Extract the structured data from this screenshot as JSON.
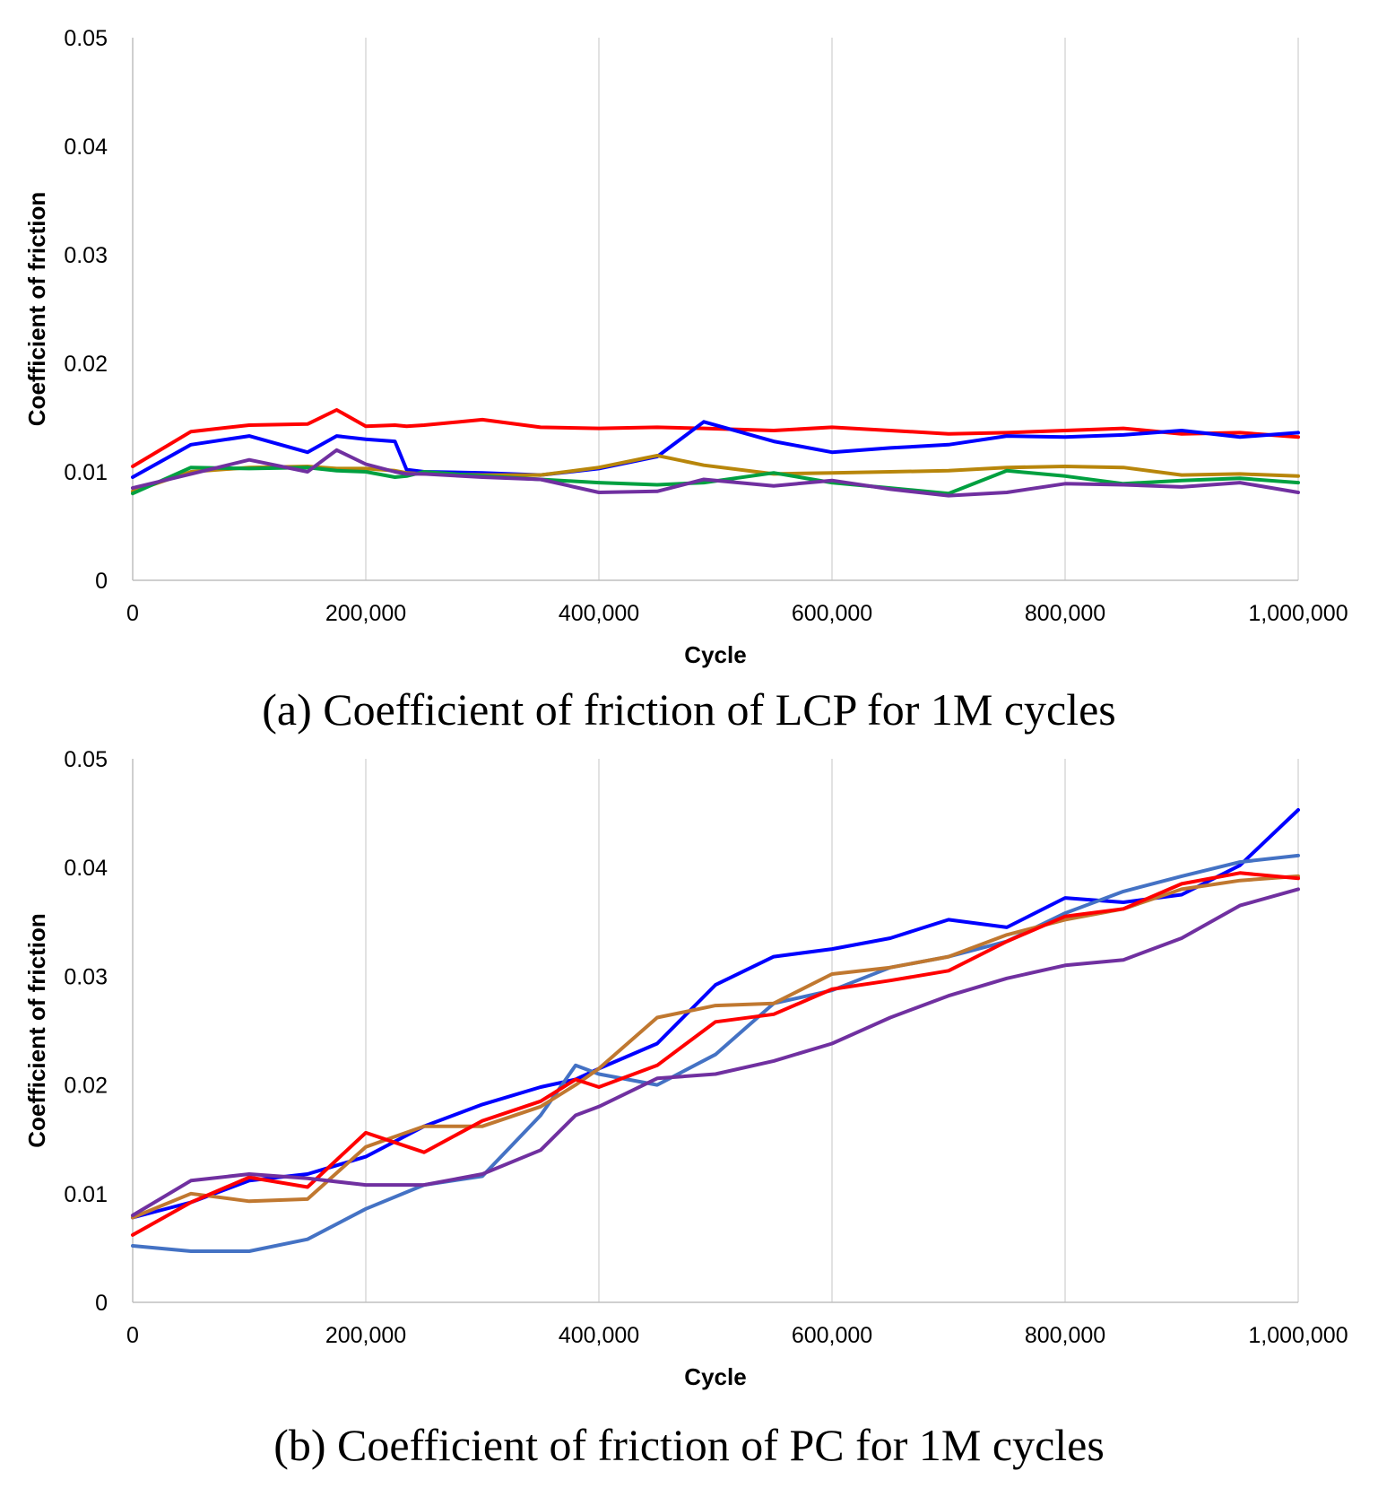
{
  "chart_data": [
    {
      "type": "line",
      "caption": "(a) Coefficient of friction of LCP for 1M cycles",
      "xlabel": "Cycle",
      "ylabel": "Coefficient of friction",
      "xlim": [
        0,
        1000000
      ],
      "ylim": [
        0,
        0.05
      ],
      "x_ticks": [
        "0",
        "200,000",
        "400,000",
        "600,000",
        "800,000",
        "1,000,000"
      ],
      "y_ticks": [
        "0",
        "0.01",
        "0.02",
        "0.03",
        "0.04",
        "0.05"
      ],
      "grid": "vertical",
      "legend": "none",
      "x": [
        0,
        50000,
        100000,
        150000,
        175000,
        200000,
        225000,
        235000,
        250000,
        300000,
        350000,
        400000,
        450000,
        490000,
        550000,
        600000,
        650000,
        700000,
        750000,
        800000,
        850000,
        900000,
        950000,
        1000000
      ],
      "series": [
        {
          "color": "#ff0000",
          "values": [
            0.0105,
            0.0137,
            0.0143,
            0.0144,
            0.0157,
            0.0142,
            0.0143,
            0.0142,
            0.0143,
            0.0148,
            0.0141,
            0.014,
            0.0141,
            0.014,
            0.0138,
            0.0141,
            0.0138,
            0.0135,
            0.0136,
            0.0138,
            0.014,
            0.0135,
            0.0136,
            0.0132
          ]
        },
        {
          "color": "#0000ff",
          "values": [
            0.0095,
            0.0125,
            0.0133,
            0.0118,
            0.0133,
            0.013,
            0.0128,
            0.0102,
            0.01,
            0.0099,
            0.0097,
            0.0103,
            0.0114,
            0.0146,
            0.0128,
            0.0118,
            0.0122,
            0.0125,
            0.0133,
            0.0132,
            0.0134,
            0.0138,
            0.0132,
            0.0136
          ]
        },
        {
          "color": "#b8860b",
          "values": [
            0.0082,
            0.01,
            0.0104,
            0.0105,
            0.0103,
            0.0103,
            0.0101,
            0.0099,
            0.0098,
            0.0097,
            0.0097,
            0.0104,
            0.0115,
            0.0106,
            0.0098,
            0.0099,
            0.01,
            0.0101,
            0.0104,
            0.0105,
            0.0104,
            0.0097,
            0.0098,
            0.0096
          ]
        },
        {
          "color": "#00a040",
          "values": [
            0.008,
            0.0104,
            0.0103,
            0.0104,
            0.0101,
            0.01,
            0.0095,
            0.0096,
            0.01,
            0.0096,
            0.0093,
            0.009,
            0.0088,
            0.009,
            0.0099,
            0.009,
            0.0085,
            0.008,
            0.0101,
            0.0096,
            0.0089,
            0.0092,
            0.0094,
            0.009
          ]
        },
        {
          "color": "#7030a0",
          "values": [
            0.0085,
            0.0098,
            0.0111,
            0.01,
            0.012,
            0.0107,
            0.01,
            0.0098,
            0.0098,
            0.0095,
            0.0093,
            0.0081,
            0.0082,
            0.0093,
            0.0087,
            0.0092,
            0.0084,
            0.0078,
            0.0081,
            0.0089,
            0.0088,
            0.0086,
            0.009,
            0.0081
          ]
        }
      ]
    },
    {
      "type": "line",
      "caption": "(b) Coefficient of friction of PC for 1M cycles",
      "xlabel": "Cycle",
      "ylabel": "Coefficient of friction",
      "xlim": [
        0,
        1000000
      ],
      "ylim": [
        0,
        0.05
      ],
      "x_ticks": [
        "0",
        "200,000",
        "400,000",
        "600,000",
        "800,000",
        "1,000,000"
      ],
      "y_ticks": [
        "0",
        "0.01",
        "0.02",
        "0.03",
        "0.04",
        "0.05"
      ],
      "grid": "vertical",
      "legend": "none",
      "x": [
        0,
        50000,
        100000,
        150000,
        200000,
        250000,
        300000,
        350000,
        380000,
        400000,
        450000,
        500000,
        550000,
        600000,
        650000,
        700000,
        750000,
        800000,
        850000,
        900000,
        950000,
        1000000
      ],
      "series": [
        {
          "color": "#0000ff",
          "values": [
            0.0078,
            0.0092,
            0.0112,
            0.0118,
            0.0134,
            0.0162,
            0.0182,
            0.0198,
            0.0205,
            0.0215,
            0.0238,
            0.0292,
            0.0318,
            0.0325,
            0.0335,
            0.0352,
            0.0345,
            0.0372,
            0.0368,
            0.0375,
            0.0402,
            0.0453
          ]
        },
        {
          "color": "#4472c4",
          "values": [
            0.0052,
            0.0047,
            0.0047,
            0.0058,
            0.0086,
            0.0108,
            0.0116,
            0.0172,
            0.0218,
            0.021,
            0.02,
            0.0228,
            0.0275,
            0.0287,
            0.0308,
            0.0318,
            0.0332,
            0.0358,
            0.0378,
            0.0392,
            0.0405,
            0.0411
          ]
        },
        {
          "color": "#c07830",
          "values": [
            0.0078,
            0.01,
            0.0093,
            0.0095,
            0.0143,
            0.0162,
            0.0162,
            0.018,
            0.02,
            0.0215,
            0.0262,
            0.0273,
            0.0275,
            0.0302,
            0.0308,
            0.0318,
            0.0338,
            0.0352,
            0.0362,
            0.038,
            0.0388,
            0.0392
          ]
        },
        {
          "color": "#ff0000",
          "values": [
            0.0062,
            0.0092,
            0.0115,
            0.0106,
            0.0156,
            0.0138,
            0.0167,
            0.0185,
            0.0205,
            0.0198,
            0.0218,
            0.0258,
            0.0265,
            0.0288,
            0.0296,
            0.0305,
            0.0332,
            0.0355,
            0.0362,
            0.0385,
            0.0395,
            0.039
          ]
        },
        {
          "color": "#7030a0",
          "values": [
            0.008,
            0.0112,
            0.0118,
            0.0114,
            0.0108,
            0.0108,
            0.0118,
            0.014,
            0.0172,
            0.018,
            0.0206,
            0.021,
            0.0222,
            0.0238,
            0.0262,
            0.0282,
            0.0298,
            0.031,
            0.0315,
            0.0335,
            0.0365,
            0.038
          ]
        }
      ]
    }
  ]
}
